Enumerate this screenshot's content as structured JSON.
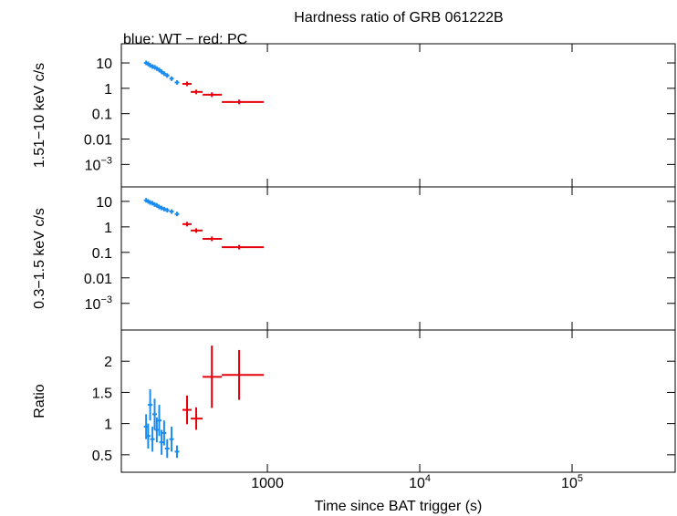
{
  "chart_data": [
    {
      "type": "errorbar",
      "title": "Hardness ratio of GRB 061222B",
      "subtitle": "blue: WT − red: PC",
      "ylabel": "1.51−10 keV c/s",
      "log_x": true,
      "log_y": true,
      "xlim": [
        110,
        475000
      ],
      "xticks": [
        1000,
        {
          "value": 10000,
          "label": "104"
        },
        {
          "value": 100000,
          "label": "105"
        }
      ],
      "ylim": [
        0.00013,
        57
      ],
      "yticks": [
        {
          "value": 0.001,
          "label": "10−3"
        },
        0.01,
        0.1,
        1,
        10
      ],
      "series": [
        {
          "color": "#1a8cf0",
          "x": [
            160,
            165,
            170,
            176,
            182,
            188,
            195,
            202,
            210,
            220,
            235,
            255
          ],
          "values": [
            10,
            9.2,
            8,
            7.2,
            6.8,
            6,
            5.3,
            4.5,
            3.8,
            3.2,
            2.4,
            1.7
          ]
        },
        {
          "color": "#e6000b",
          "x": [
            297,
            341,
            432,
            652
          ],
          "xmin": [
            277,
            314,
            376,
            502
          ],
          "xmax": [
            318,
            376,
            502,
            946
          ],
          "values": [
            1.5,
            0.72,
            0.56,
            0.29
          ]
        }
      ]
    },
    {
      "type": "errorbar",
      "ylabel": "0.3−1.5 keV c/s",
      "log_x": true,
      "log_y": true,
      "xlim": [
        110,
        475000
      ],
      "xticks": [
        1000,
        {
          "value": 10000,
          "label": "104"
        },
        {
          "value": 100000,
          "label": "105"
        }
      ],
      "ylim": [
        9e-05,
        37
      ],
      "yticks": [
        {
          "value": 0.001,
          "label": "10−3"
        },
        0.01,
        0.1,
        1,
        10
      ],
      "series": [
        {
          "color": "#1a8cf0",
          "x": [
            160,
            165,
            170,
            176,
            182,
            188,
            195,
            202,
            210,
            220,
            235,
            255
          ],
          "values": [
            11,
            10,
            9,
            8.5,
            7.5,
            7,
            6,
            5.5,
            5,
            4.5,
            4,
            3.2
          ]
        },
        {
          "color": "#e6000b",
          "x": [
            297,
            341,
            432,
            652
          ],
          "xmin": [
            277,
            314,
            376,
            502
          ],
          "xmax": [
            318,
            376,
            502,
            946
          ],
          "values": [
            1.28,
            0.72,
            0.34,
            0.16
          ]
        }
      ]
    },
    {
      "type": "errorbar",
      "ylabel": "Ratio",
      "xlabel": "Time since BAT trigger (s)",
      "log_x": true,
      "log_y": false,
      "xlim": [
        110,
        475000
      ],
      "xticks": [
        1000,
        {
          "value": 10000,
          "label": "104"
        },
        {
          "value": 100000,
          "label": "105"
        }
      ],
      "ylim": [
        0.22,
        2.5
      ],
      "yticks": [
        0.5,
        1,
        1.5,
        2
      ],
      "series": [
        {
          "color": "#1a8cf0",
          "x": [
            160,
            165,
            170,
            176,
            182,
            188,
            195,
            202,
            210,
            220,
            235,
            255
          ],
          "values": [
            0.95,
            0.8,
            1.3,
            0.75,
            1.15,
            0.9,
            1.05,
            0.7,
            0.85,
            0.6,
            0.75,
            0.55
          ],
          "yerr": [
            0.2,
            0.2,
            0.25,
            0.2,
            0.25,
            0.2,
            0.25,
            0.2,
            0.2,
            0.15,
            0.2,
            0.1
          ]
        },
        {
          "color": "#e6000b",
          "x": [
            297,
            341,
            432,
            652
          ],
          "xmin": [
            277,
            314,
            376,
            502
          ],
          "xmax": [
            318,
            376,
            502,
            946
          ],
          "values": [
            1.22,
            1.08,
            1.75,
            1.78
          ],
          "yerr": [
            0.23,
            0.18,
            0.5,
            0.4
          ]
        }
      ]
    }
  ]
}
